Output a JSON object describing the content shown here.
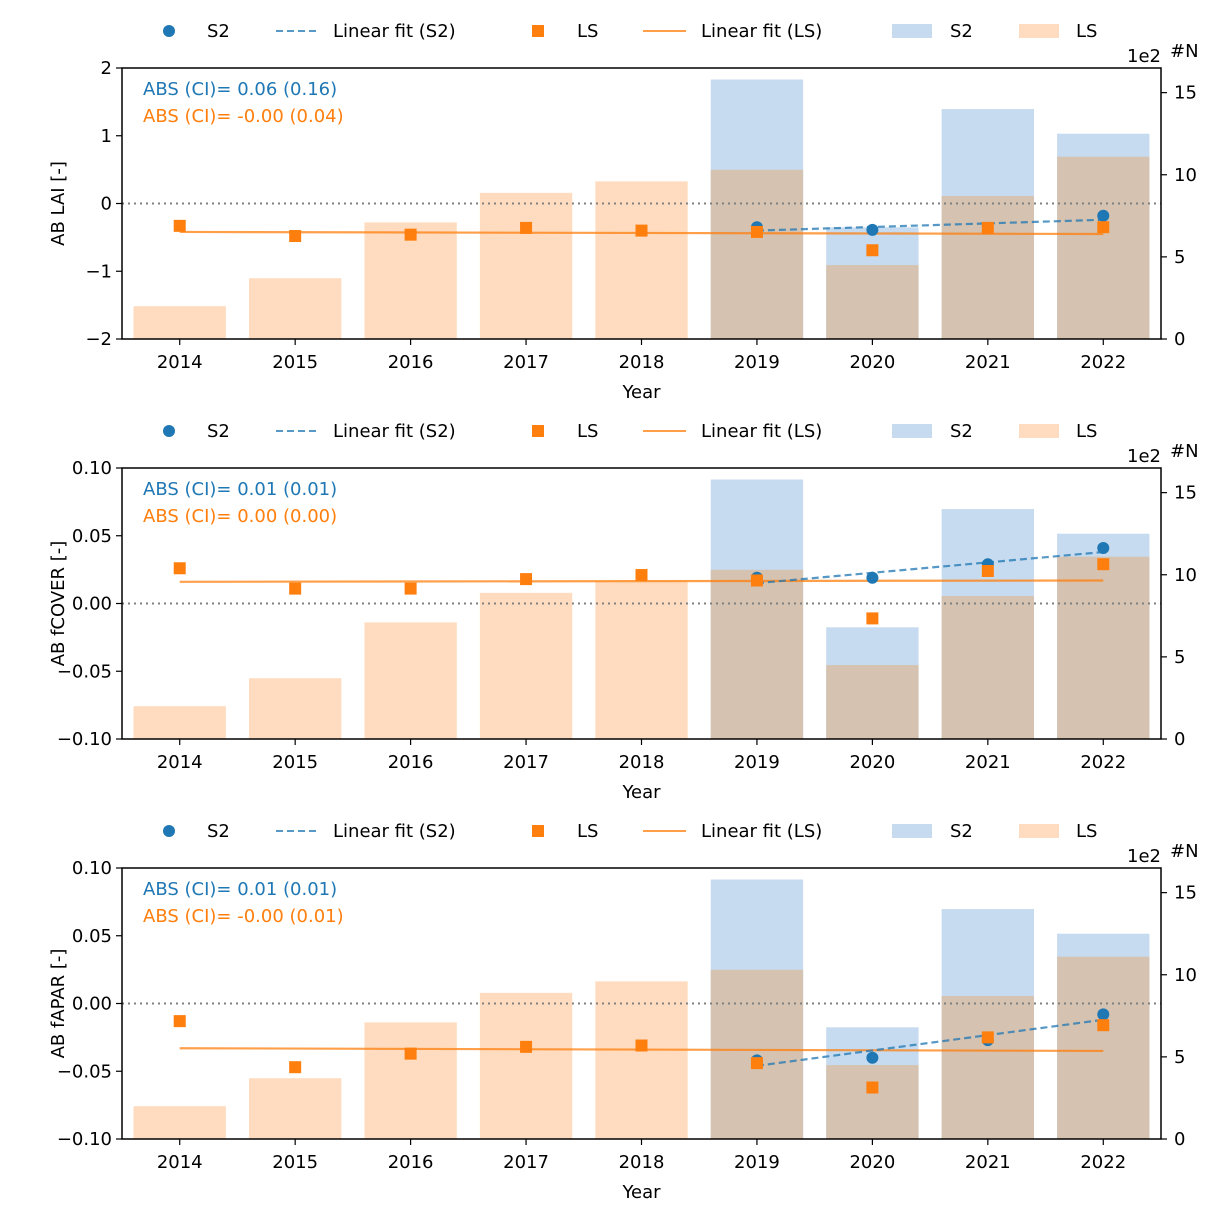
{
  "colors": {
    "s2": "#1f77b4",
    "ls": "#ff7f0e",
    "s2_bar": "#c6dbef",
    "ls_bar": "#ffdcbf",
    "overlap_bar": "#d5c2b0",
    "zero_line": "#808080"
  },
  "legend": {
    "s2_points": "S2",
    "s2_fit": "Linear fit (S2)",
    "ls_points": "LS",
    "ls_fit": "Linear fit (LS)",
    "s2_bars": "S2",
    "ls_bars": "LS"
  },
  "chart_data": [
    {
      "type": "bar+scatter+line",
      "ylabel": "AB LAI [-]",
      "xlabel": "Year",
      "y2label": "#N",
      "y2_multiplier": "1e2",
      "ylim": [
        -2,
        2
      ],
      "yticks": [
        "−2",
        "−1",
        "0",
        "1",
        "2"
      ],
      "y2lim": [
        0,
        16.5
      ],
      "y2ticks": [
        "0",
        "5",
        "10",
        "15"
      ],
      "categories": [
        "2014",
        "2015",
        "2016",
        "2017",
        "2018",
        "2019",
        "2020",
        "2021",
        "2022"
      ],
      "annotations": [
        "ABS (CI)= 0.06 (0.16)",
        "ABS (CI)= -0.00 (0.04)"
      ],
      "s2_points": [
        null,
        null,
        null,
        null,
        null,
        -0.35,
        -0.39,
        null,
        -0.18
      ],
      "ls_points": [
        -0.33,
        -0.48,
        -0.46,
        -0.36,
        -0.4,
        -0.42,
        -0.69,
        -0.36,
        -0.35
      ],
      "s2_fit": {
        "from": 2019,
        "to": 2022,
        "start": -0.4,
        "end": -0.24
      },
      "ls_fit": {
        "from": 2014,
        "to": 2022,
        "start": -0.42,
        "end": -0.45
      },
      "s2_counts": [
        0,
        0,
        0,
        0,
        0,
        15.8,
        6.8,
        14.0,
        12.5
      ],
      "ls_counts": [
        2.0,
        3.7,
        7.1,
        8.9,
        9.6,
        10.3,
        4.5,
        8.7,
        11.1
      ]
    },
    {
      "type": "bar+scatter+line",
      "ylabel": "AB fCOVER [-]",
      "xlabel": "Year",
      "y2label": "#N",
      "y2_multiplier": "1e2",
      "ylim": [
        -0.1,
        0.1
      ],
      "yticks": [
        "−0.10",
        "−0.05",
        "0.00",
        "0.05",
        "0.10"
      ],
      "y2lim": [
        0,
        16.5
      ],
      "y2ticks": [
        "0",
        "5",
        "10",
        "15"
      ],
      "categories": [
        "2014",
        "2015",
        "2016",
        "2017",
        "2018",
        "2019",
        "2020",
        "2021",
        "2022"
      ],
      "annotations": [
        "ABS (CI)= 0.01 (0.01)",
        "ABS (CI)= 0.00 (0.00)"
      ],
      "s2_points": [
        null,
        null,
        null,
        null,
        null,
        0.019,
        0.019,
        0.029,
        0.041
      ],
      "ls_points": [
        0.026,
        0.011,
        0.011,
        0.018,
        0.021,
        0.017,
        -0.011,
        0.024,
        0.029
      ],
      "s2_fit": {
        "from": 2019,
        "to": 2022,
        "start": 0.015,
        "end": 0.038
      },
      "ls_fit": {
        "from": 2014,
        "to": 2022,
        "start": 0.016,
        "end": 0.017
      },
      "s2_counts": [
        0,
        0,
        0,
        0,
        0,
        15.8,
        6.8,
        14.0,
        12.5
      ],
      "ls_counts": [
        2.0,
        3.7,
        7.1,
        8.9,
        9.6,
        10.3,
        4.5,
        8.7,
        11.1
      ]
    },
    {
      "type": "bar+scatter+line",
      "ylabel": "AB fAPAR [-]",
      "xlabel": "Year",
      "y2label": "#N",
      "y2_multiplier": "1e2",
      "ylim": [
        -0.1,
        0.1
      ],
      "yticks": [
        "−0.10",
        "−0.05",
        "0.00",
        "0.05",
        "0.10"
      ],
      "y2lim": [
        0,
        16.5
      ],
      "y2ticks": [
        "0",
        "5",
        "10",
        "15"
      ],
      "categories": [
        "2014",
        "2015",
        "2016",
        "2017",
        "2018",
        "2019",
        "2020",
        "2021",
        "2022"
      ],
      "annotations": [
        "ABS (CI)= 0.01 (0.01)",
        "ABS (CI)= -0.00 (0.01)"
      ],
      "s2_points": [
        null,
        null,
        null,
        null,
        null,
        -0.042,
        -0.04,
        -0.027,
        -0.008
      ],
      "ls_points": [
        -0.013,
        -0.047,
        -0.037,
        -0.032,
        -0.031,
        -0.044,
        -0.062,
        -0.025,
        -0.016
      ],
      "s2_fit": {
        "from": 2019,
        "to": 2022,
        "start": -0.046,
        "end": -0.012
      },
      "ls_fit": {
        "from": 2014,
        "to": 2022,
        "start": -0.033,
        "end": -0.035
      },
      "s2_counts": [
        0,
        0,
        0,
        0,
        0,
        15.8,
        6.8,
        14.0,
        12.5
      ],
      "ls_counts": [
        2.0,
        3.7,
        7.1,
        8.9,
        9.6,
        10.3,
        4.5,
        8.7,
        11.1
      ]
    }
  ]
}
